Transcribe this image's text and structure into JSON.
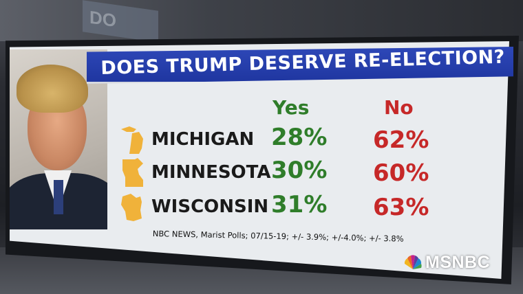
{
  "graphic": {
    "title": "DOES TRUMP DESERVE RE-ELECTION?",
    "columns": {
      "yes": "Yes",
      "no": "No"
    },
    "rows": [
      {
        "state": "MICHIGAN",
        "yes": "28%",
        "no": "62%"
      },
      {
        "state": "MINNESOTA",
        "yes": "30%",
        "no": "60%"
      },
      {
        "state": "WISCONSIN",
        "yes": "31%",
        "no": "63%"
      }
    ],
    "source": "NBC NEWS, Marist Polls; 07/15-19; +/- 3.9%; +/-4.0%; +/- 3.8%"
  },
  "background_sign": "DO",
  "network_logo": "MSNBC",
  "colors": {
    "banner": "#2440b0",
    "yes": "#2f7d2a",
    "no": "#c62828",
    "state_shape": "#f0b23a"
  }
}
